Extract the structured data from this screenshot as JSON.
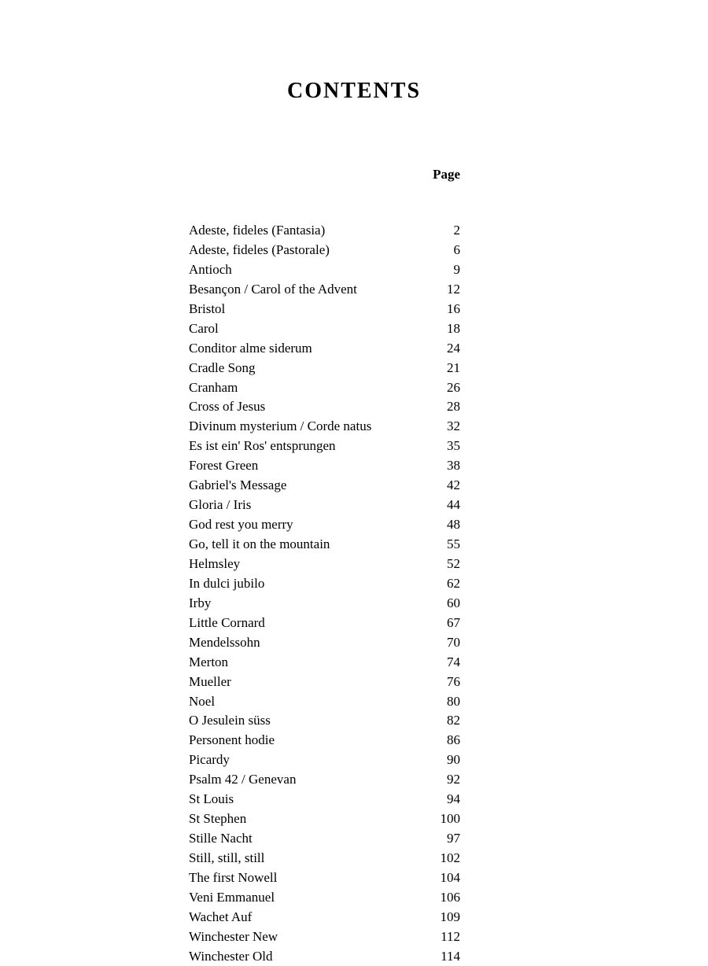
{
  "title": "CONTENTS",
  "page_header": "Page",
  "entries": [
    {
      "title": "Adeste, fideles (Fantasia)",
      "page": "2"
    },
    {
      "title": "Adeste, fideles (Pastorale)",
      "page": "6"
    },
    {
      "title": "Antioch",
      "page": "9"
    },
    {
      "title": "Besançon / Carol of the Advent",
      "page": "12"
    },
    {
      "title": "Bristol",
      "page": "16"
    },
    {
      "title": "Carol",
      "page": "18"
    },
    {
      "title": "Conditor alme siderum",
      "page": "24"
    },
    {
      "title": "Cradle Song",
      "page": "21"
    },
    {
      "title": "Cranham",
      "page": "26"
    },
    {
      "title": "Cross of Jesus",
      "page": "28"
    },
    {
      "title": "Divinum mysterium / Corde natus",
      "page": "32"
    },
    {
      "title": "Es ist ein' Ros' entsprungen",
      "page": "35"
    },
    {
      "title": "Forest Green",
      "page": "38"
    },
    {
      "title": "Gabriel's Message",
      "page": "42"
    },
    {
      "title": "Gloria / Iris",
      "page": "44"
    },
    {
      "title": "God rest you merry",
      "page": "48"
    },
    {
      "title": "Go, tell it on the mountain",
      "page": "55"
    },
    {
      "title": "Helmsley",
      "page": "52"
    },
    {
      "title": "In dulci jubilo",
      "page": "62"
    },
    {
      "title": "Irby",
      "page": "60"
    },
    {
      "title": "Little Cornard",
      "page": "67"
    },
    {
      "title": "Mendelssohn",
      "page": "70"
    },
    {
      "title": "Merton",
      "page": "74"
    },
    {
      "title": "Mueller",
      "page": "76"
    },
    {
      "title": "Noel",
      "page": "80"
    },
    {
      "title": "O Jesulein süss",
      "page": "82"
    },
    {
      "title": "Personent hodie",
      "page": "86"
    },
    {
      "title": "Picardy",
      "page": "90"
    },
    {
      "title": "Psalm 42 / Genevan",
      "page": "92"
    },
    {
      "title": "St Louis",
      "page": "94"
    },
    {
      "title": "St Stephen",
      "page": "100"
    },
    {
      "title": "Stille Nacht",
      "page": "97"
    },
    {
      "title": "Still, still, still",
      "page": "102"
    },
    {
      "title": "The first Nowell",
      "page": "104"
    },
    {
      "title": "Veni Emmanuel",
      "page": "106"
    },
    {
      "title": "Wachet Auf",
      "page": "109"
    },
    {
      "title": "Winchester New",
      "page": "112"
    },
    {
      "title": "Winchester Old",
      "page": "114"
    }
  ]
}
